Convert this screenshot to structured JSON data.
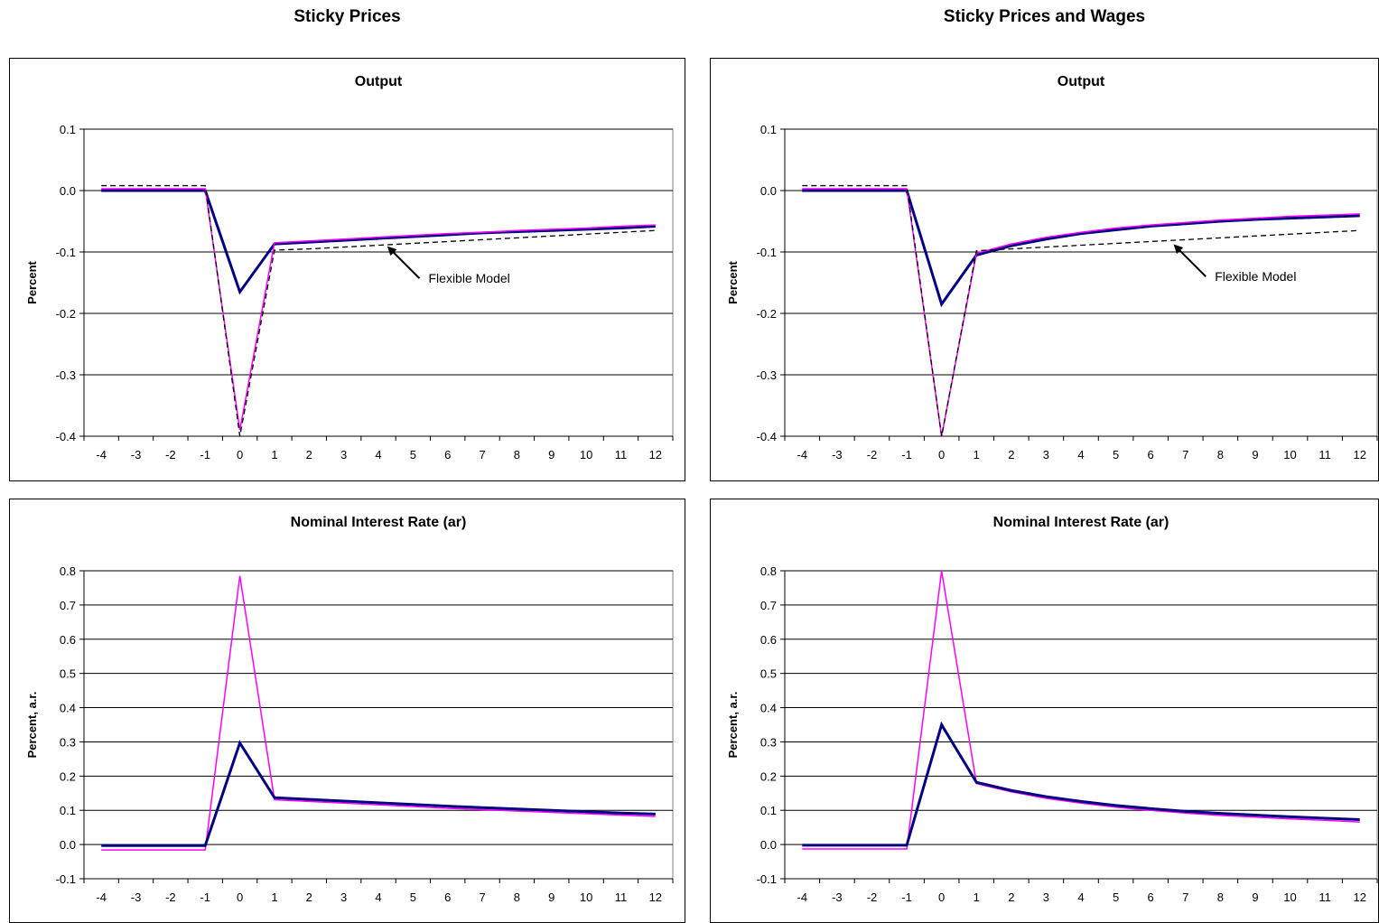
{
  "column_titles": [
    "Sticky Prices",
    "Sticky Prices and Wages"
  ],
  "chart_data": [
    {
      "type": "line",
      "title": "Output",
      "ylabel": "Percent",
      "xlabel": "",
      "x": [
        -4,
        -3,
        -2,
        -1,
        0,
        1,
        2,
        3,
        4,
        5,
        6,
        7,
        8,
        9,
        10,
        11,
        12
      ],
      "ylim": [
        -0.4,
        0.1
      ],
      "yticks": [
        0.1,
        0.0,
        -0.1,
        -0.2,
        -0.3,
        -0.4
      ],
      "ytick_labels": [
        "0.1",
        "0.0",
        "-0.1",
        "-0.2",
        "-0.3",
        "-0.4"
      ],
      "grid": true,
      "annotation": {
        "text": "Flexible Model",
        "arrow_to": [
          4.3,
          -0.093
        ]
      },
      "series": [
        {
          "style": "navy-thick",
          "color": "#000080",
          "values": [
            0.0,
            0.0,
            0.0,
            0.0,
            -0.165,
            -0.087,
            -0.084,
            -0.081,
            -0.078,
            -0.075,
            -0.072,
            -0.069,
            -0.067,
            -0.065,
            -0.063,
            -0.061,
            -0.058
          ]
        },
        {
          "style": "magenta-thin",
          "color": "#ff00ff",
          "values": [
            0.003,
            0.003,
            0.003,
            0.003,
            -0.39,
            -0.085,
            -0.082,
            -0.079,
            -0.076,
            -0.073,
            -0.07,
            -0.068,
            -0.065,
            -0.063,
            -0.061,
            -0.058,
            -0.056
          ]
        },
        {
          "style": "black-dashed",
          "color": "#000000",
          "values": [
            0.008,
            0.008,
            0.008,
            0.008,
            -0.4,
            -0.097,
            -0.095,
            -0.092,
            -0.089,
            -0.086,
            -0.083,
            -0.08,
            -0.077,
            -0.074,
            -0.071,
            -0.068,
            -0.065
          ]
        }
      ]
    },
    {
      "type": "line",
      "title": "Output",
      "ylabel": "Percent",
      "xlabel": "",
      "x": [
        -4,
        -3,
        -2,
        -1,
        0,
        1,
        2,
        3,
        4,
        5,
        6,
        7,
        8,
        9,
        10,
        11,
        12
      ],
      "ylim": [
        -0.4,
        0.1
      ],
      "yticks": [
        0.1,
        0.0,
        -0.1,
        -0.2,
        -0.3,
        -0.4
      ],
      "ytick_labels": [
        "0.1",
        "0.0",
        "-0.1",
        "-0.2",
        "-0.3",
        "-0.4"
      ],
      "grid": true,
      "annotation": {
        "text": "Flexible Model",
        "arrow_to": [
          6.7,
          -0.09
        ]
      },
      "series": [
        {
          "style": "navy-thick",
          "color": "#000080",
          "values": [
            0.0,
            0.0,
            0.0,
            0.0,
            -0.185,
            -0.105,
            -0.09,
            -0.079,
            -0.07,
            -0.064,
            -0.058,
            -0.054,
            -0.05,
            -0.047,
            -0.045,
            -0.043,
            -0.041
          ]
        },
        {
          "style": "magenta-thin",
          "color": "#ff00ff",
          "values": [
            0.003,
            0.003,
            0.003,
            0.003,
            -0.4,
            -0.102,
            -0.087,
            -0.076,
            -0.068,
            -0.061,
            -0.056,
            -0.052,
            -0.048,
            -0.045,
            -0.042,
            -0.04,
            -0.038
          ]
        },
        {
          "style": "black-dashed",
          "color": "#000000",
          "values": [
            0.008,
            0.008,
            0.008,
            0.008,
            -0.4,
            -0.098,
            -0.095,
            -0.092,
            -0.089,
            -0.086,
            -0.083,
            -0.08,
            -0.077,
            -0.074,
            -0.071,
            -0.068,
            -0.065
          ]
        }
      ]
    },
    {
      "type": "line",
      "title": "Nominal Interest Rate (ar)",
      "ylabel": "Percent, a.r.",
      "xlabel": "",
      "x": [
        -4,
        -3,
        -2,
        -1,
        0,
        1,
        2,
        3,
        4,
        5,
        6,
        7,
        8,
        9,
        10,
        11,
        12
      ],
      "ylim": [
        -0.1,
        0.8
      ],
      "yticks": [
        0.8,
        0.7,
        0.6,
        0.5,
        0.4,
        0.3,
        0.2,
        0.1,
        0.0,
        -0.1
      ],
      "ytick_labels": [
        "0.8",
        "0.7",
        "0.6",
        "0.5",
        "0.4",
        "0.3",
        "0.2",
        "0.1",
        "0.0",
        "-0.1"
      ],
      "grid": true,
      "series": [
        {
          "style": "magenta-thin",
          "color": "#ff00ff",
          "values": [
            -0.016,
            -0.016,
            -0.016,
            -0.016,
            0.785,
            0.131,
            0.126,
            0.121,
            0.116,
            0.111,
            0.106,
            0.102,
            0.098,
            0.094,
            0.09,
            0.086,
            0.082
          ]
        },
        {
          "style": "navy-thick",
          "color": "#000080",
          "values": [
            -0.003,
            -0.003,
            -0.003,
            -0.003,
            0.297,
            0.137,
            0.132,
            0.127,
            0.122,
            0.117,
            0.112,
            0.108,
            0.104,
            0.1,
            0.096,
            0.092,
            0.089
          ]
        }
      ]
    },
    {
      "type": "line",
      "title": "Nominal Interest Rate (ar)",
      "ylabel": "Percent, a.r.",
      "xlabel": "",
      "x": [
        -4,
        -3,
        -2,
        -1,
        0,
        1,
        2,
        3,
        4,
        5,
        6,
        7,
        8,
        9,
        10,
        11,
        12
      ],
      "ylim": [
        -0.1,
        0.8
      ],
      "yticks": [
        0.8,
        0.7,
        0.6,
        0.5,
        0.4,
        0.3,
        0.2,
        0.1,
        0.0,
        -0.1
      ],
      "ytick_labels": [
        "0.8",
        "0.7",
        "0.6",
        "0.5",
        "0.4",
        "0.3",
        "0.2",
        "0.1",
        "0.0",
        "-0.1"
      ],
      "grid": true,
      "series": [
        {
          "style": "magenta-thin",
          "color": "#ff00ff",
          "values": [
            -0.013,
            -0.013,
            -0.013,
            -0.013,
            0.8,
            0.178,
            0.154,
            0.135,
            0.121,
            0.109,
            0.1,
            0.092,
            0.085,
            0.08,
            0.075,
            0.071,
            0.066
          ]
        },
        {
          "style": "navy-thick",
          "color": "#000080",
          "values": [
            -0.002,
            -0.002,
            -0.002,
            -0.002,
            0.35,
            0.182,
            0.158,
            0.14,
            0.126,
            0.114,
            0.105,
            0.097,
            0.091,
            0.086,
            0.081,
            0.077,
            0.073
          ]
        }
      ]
    }
  ]
}
